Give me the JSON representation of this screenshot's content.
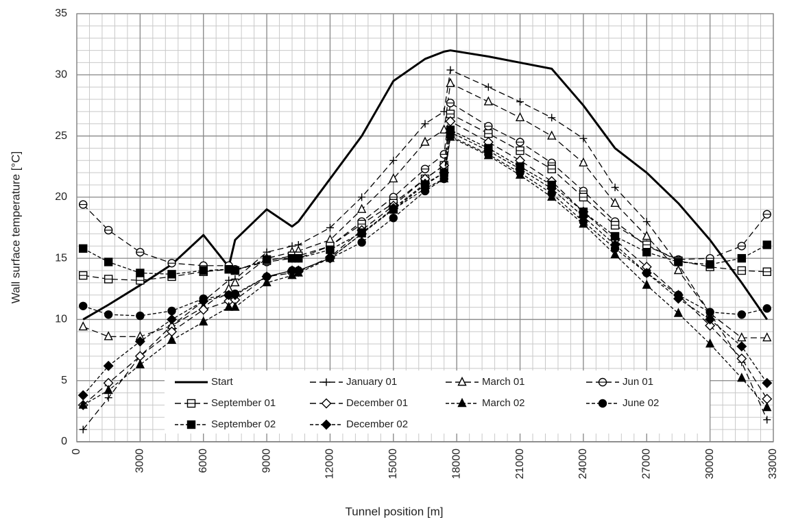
{
  "chart_data": {
    "type": "line",
    "xlabel": "Tunnel position [m]",
    "ylabel": "Wall surface temperature [°C]",
    "x": [
      300,
      1500,
      3000,
      4500,
      6000,
      7200,
      7500,
      9000,
      10200,
      10500,
      12000,
      13500,
      15000,
      16500,
      17400,
      17700,
      19500,
      21000,
      22500,
      24000,
      25500,
      27000,
      28500,
      30000,
      31500,
      32700
    ],
    "xlim": [
      0,
      33000
    ],
    "xticks": [
      0,
      3000,
      6000,
      9000,
      12000,
      15000,
      18000,
      21000,
      24000,
      27000,
      30000,
      33000
    ],
    "ylim": [
      0,
      35
    ],
    "yticks": [
      0,
      5,
      10,
      15,
      20,
      25,
      30,
      35
    ],
    "grid": true,
    "legend": "lower center",
    "series": [
      {
        "name": "Start",
        "color": "#000000",
        "dash": "solid",
        "marker": "none",
        "values": [
          10,
          11.2,
          12.8,
          14.5,
          16.9,
          14.3,
          16.5,
          19,
          17.6,
          18,
          21.5,
          25,
          29.5,
          31.3,
          31.9,
          32,
          31.5,
          31,
          30.5,
          27.5,
          24,
          22,
          19.5,
          16.5,
          13,
          10
        ]
      },
      {
        "name": "January 01",
        "color": "#000000",
        "dash": "dash",
        "marker": "plus",
        "values": [
          1,
          3.6,
          7,
          9.5,
          11.5,
          13.2,
          13.3,
          15.5,
          16,
          16.1,
          17.5,
          20,
          23,
          26,
          27,
          30.4,
          29,
          27.8,
          26.5,
          24.8,
          20.8,
          18,
          14.5,
          10.5,
          6.5,
          1.8
        ]
      },
      {
        "name": "March 01",
        "color": "#000000",
        "dash": "dash",
        "marker": "triangle-open",
        "values": [
          9.4,
          8.6,
          8.6,
          9.5,
          11,
          12.5,
          13,
          15,
          15.5,
          15.6,
          16.5,
          19,
          21.5,
          24.5,
          25.5,
          29.3,
          27.8,
          26.5,
          25,
          22.8,
          19.5,
          16.8,
          14,
          10.5,
          8.5,
          8.5
        ]
      },
      {
        "name": "Jun 01",
        "color": "#000000",
        "dash": "dash",
        "marker": "circle-line",
        "values": [
          19.4,
          17.3,
          15.5,
          14.6,
          14.4,
          14.4,
          14.1,
          14.7,
          15,
          15,
          16,
          18,
          20,
          22.3,
          23.5,
          27.7,
          25.8,
          24.5,
          22.8,
          20.5,
          18,
          16,
          14.9,
          15,
          16,
          18.6
        ]
      },
      {
        "name": "September 01",
        "color": "#000000",
        "dash": "dash",
        "marker": "square-line",
        "values": [
          13.6,
          13.3,
          13.2,
          13.5,
          13.9,
          14.1,
          14,
          14.8,
          15.2,
          15.2,
          16,
          17.8,
          19.5,
          21.5,
          22.6,
          26.8,
          25.2,
          23.8,
          22.3,
          20,
          17.7,
          16.1,
          14.8,
          14.3,
          14,
          13.9
        ]
      },
      {
        "name": "December 01",
        "color": "#000000",
        "dash": "dash",
        "marker": "diamond-open",
        "values": [
          3,
          4.8,
          7,
          9,
          10.8,
          11.5,
          11.6,
          13.5,
          13.8,
          13.9,
          15.1,
          17.3,
          19.3,
          21.5,
          22.6,
          26.2,
          24.5,
          23,
          21.3,
          18.8,
          16.5,
          14.3,
          12,
          9.5,
          6.8,
          3.5
        ]
      },
      {
        "name": "March 02",
        "color": "#000000",
        "dash": "dot",
        "marker": "triangle",
        "values": [
          3,
          4.2,
          6.3,
          8.3,
          9.8,
          11,
          11,
          13,
          13.6,
          13.8,
          15,
          17,
          19,
          20.7,
          21.5,
          24.9,
          23.4,
          21.8,
          20,
          17.8,
          15.3,
          12.8,
          10.5,
          8,
          5.2,
          2.8
        ]
      },
      {
        "name": "June 02",
        "color": "#000000",
        "dash": "dot",
        "marker": "circle",
        "values": [
          11.1,
          10.4,
          10.3,
          10.7,
          11.7,
          12,
          12.1,
          13.5,
          14,
          14,
          15,
          16.3,
          18.3,
          20.5,
          21.5,
          25,
          23.5,
          22,
          20.3,
          18,
          15.8,
          13.8,
          12,
          10.6,
          10.4,
          10.9
        ]
      },
      {
        "name": "September 02",
        "color": "#000000",
        "dash": "dot",
        "marker": "square",
        "values": [
          15.8,
          14.7,
          13.8,
          13.7,
          14,
          14.1,
          14,
          14.9,
          15,
          15,
          15.7,
          17.1,
          19,
          21,
          22,
          25.5,
          24,
          22.5,
          21,
          18.8,
          16.8,
          15.5,
          14.7,
          14.5,
          15,
          16.1
        ]
      },
      {
        "name": "December 02",
        "color": "#000000",
        "dash": "dot",
        "marker": "diamond",
        "values": [
          3.8,
          6.2,
          8.2,
          10,
          11.5,
          12,
          12,
          13.5,
          14,
          14,
          15,
          17,
          19.1,
          21.1,
          22,
          25.3,
          23.8,
          22.3,
          20.7,
          18.4,
          16.1,
          13.8,
          11.7,
          10,
          7.8,
          4.8
        ]
      }
    ]
  }
}
